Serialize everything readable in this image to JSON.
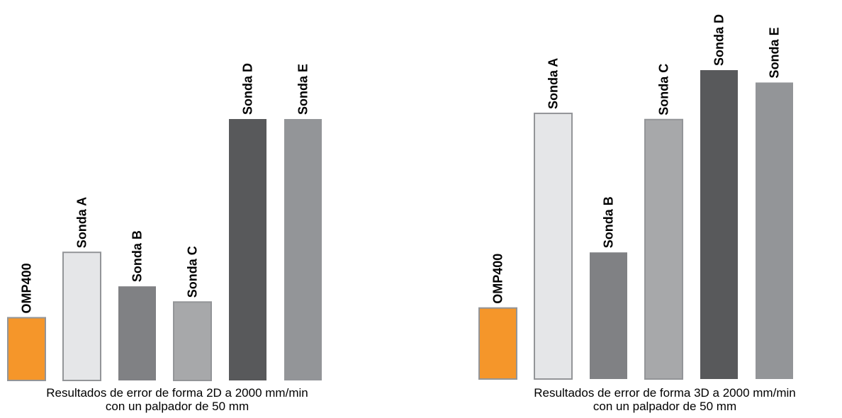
{
  "charts": [
    {
      "caption_line1": "Resultados de error de forma 2D a 2000 mm/min",
      "caption_line2": "con un palpador de 50 mm"
    },
    {
      "caption_line1": "Resultados de error de forma 3D a 2000 mm/min",
      "caption_line2": "con un palpador de 50 mm"
    }
  ],
  "chart_data": [
    {
      "type": "bar",
      "title": "Resultados de error de forma 2D a 2000 mm/min con un palpador de 50 mm",
      "categories": [
        "OMP400",
        "Sonda A",
        "Sonda B",
        "Sonda C",
        "Sonda D",
        "Sonda E"
      ],
      "values": [
        24,
        49,
        36,
        30,
        100,
        100
      ],
      "bar_colors": [
        "#f5962a",
        "#e5e6e8",
        "#808184",
        "#a7a8aa",
        "#58595b",
        "#939598"
      ],
      "bar_outlined": [
        true,
        true,
        false,
        true,
        false,
        false
      ],
      "ylim": [
        0,
        100
      ],
      "grid": false,
      "axes_shown": false,
      "units_shown": false
    },
    {
      "type": "bar",
      "title": "Resultados de error de forma 3D a 2000 mm/min con un palpador de 50 mm",
      "categories": [
        "OMP400",
        "Sonda A",
        "Sonda B",
        "Sonda C",
        "Sonda D",
        "Sonda E"
      ],
      "values": [
        23,
        86,
        41,
        84,
        100,
        96
      ],
      "bar_colors": [
        "#f5962a",
        "#e5e6e8",
        "#808184",
        "#a7a8aa",
        "#58595b",
        "#939598"
      ],
      "bar_outlined": [
        true,
        true,
        false,
        true,
        false,
        false
      ],
      "ylim": [
        0,
        100
      ],
      "grid": false,
      "axes_shown": false,
      "units_shown": false
    }
  ]
}
